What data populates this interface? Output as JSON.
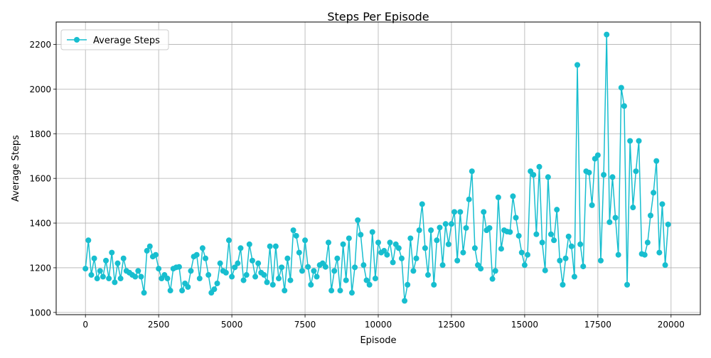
{
  "chart_data": {
    "type": "line",
    "title": "Steps Per Episode",
    "xlabel": "Episode",
    "ylabel": "Average Steps",
    "xlim": [
      -1000,
      21000
    ],
    "ylim": [
      990,
      2300
    ],
    "grid": true,
    "legend_position": "top-left",
    "x_ticks": [
      0,
      2500,
      5000,
      7500,
      10000,
      12500,
      15000,
      17500,
      20000
    ],
    "y_ticks": [
      1000,
      1200,
      1400,
      1600,
      1800,
      2000,
      2200
    ],
    "series": [
      {
        "name": "Average Steps",
        "color": "#17becf",
        "x": [
          0,
          100,
          200,
          300,
          400,
          500,
          600,
          700,
          800,
          900,
          1000,
          1100,
          1200,
          1300,
          1400,
          1500,
          1600,
          1700,
          1800,
          1900,
          2000,
          2100,
          2200,
          2300,
          2400,
          2500,
          2600,
          2700,
          2800,
          2900,
          3000,
          3100,
          3200,
          3300,
          3400,
          3500,
          3600,
          3700,
          3800,
          3900,
          4000,
          4100,
          4200,
          4300,
          4400,
          4500,
          4600,
          4700,
          4800,
          4900,
          5000,
          5100,
          5200,
          5300,
          5400,
          5500,
          5600,
          5700,
          5800,
          5900,
          6000,
          6100,
          6200,
          6300,
          6400,
          6500,
          6600,
          6700,
          6800,
          6900,
          7000,
          7100,
          7200,
          7300,
          7400,
          7500,
          7600,
          7700,
          7800,
          7900,
          8000,
          8100,
          8200,
          8300,
          8400,
          8500,
          8600,
          8700,
          8800,
          8900,
          9000,
          9100,
          9200,
          9300,
          9400,
          9500,
          9600,
          9700,
          9800,
          9900,
          10000,
          10100,
          10200,
          10300,
          10400,
          10500,
          10600,
          10700,
          10800,
          10900,
          11000,
          11100,
          11200,
          11300,
          11400,
          11500,
          11600,
          11700,
          11800,
          11900,
          12000,
          12100,
          12200,
          12300,
          12400,
          12500,
          12600,
          12700,
          12800,
          12900,
          13000,
          13100,
          13200,
          13300,
          13400,
          13500,
          13600,
          13700,
          13800,
          13900,
          14000,
          14100,
          14200,
          14300,
          14400,
          14500,
          14600,
          14700,
          14800,
          14900,
          15000,
          15100,
          15200,
          15300,
          15400,
          15500,
          15600,
          15700,
          15800,
          15900,
          16000,
          16100,
          16200,
          16300,
          16400,
          16500,
          16600,
          16700,
          16800,
          16900,
          17000,
          17100,
          17200,
          17300,
          17400,
          17500,
          17600,
          17700,
          17800,
          17900,
          18000,
          18100,
          18200,
          18300,
          18400,
          18500,
          18600,
          18700,
          18800,
          18900,
          19000,
          19100,
          19200,
          19300,
          19400,
          19500,
          19600,
          19700,
          19800,
          19900
        ],
        "values": [
          1196,
          1323,
          1168,
          1242,
          1152,
          1186,
          1160,
          1232,
          1152,
          1268,
          1135,
          1220,
          1152,
          1242,
          1186,
          1178,
          1168,
          1160,
          1186,
          1160,
          1088,
          1276,
          1296,
          1250,
          1258,
          1196,
          1152,
          1168,
          1152,
          1098,
          1196,
          1202,
          1204,
          1098,
          1130,
          1114,
          1186,
          1250,
          1258,
          1152,
          1288,
          1242,
          1168,
          1088,
          1104,
          1130,
          1220,
          1186,
          1178,
          1323,
          1160,
          1202,
          1220,
          1288,
          1144,
          1168,
          1305,
          1232,
          1160,
          1220,
          1178,
          1168,
          1135,
          1296,
          1124,
          1296,
          1152,
          1202,
          1098,
          1242,
          1144,
          1368,
          1343,
          1268,
          1186,
          1323,
          1204,
          1124,
          1186,
          1160,
          1212,
          1220,
          1204,
          1313,
          1098,
          1186,
          1242,
          1098,
          1305,
          1144,
          1332,
          1088,
          1202,
          1413,
          1348,
          1212,
          1144,
          1124,
          1360,
          1152,
          1313,
          1268,
          1276,
          1258,
          1313,
          1224,
          1305,
          1288,
          1242,
          1052,
          1124,
          1332,
          1186,
          1242,
          1368,
          1485,
          1288,
          1168,
          1368,
          1124,
          1323,
          1380,
          1212,
          1396,
          1305,
          1396,
          1450,
          1232,
          1450,
          1268,
          1378,
          1506,
          1632,
          1288,
          1212,
          1196,
          1450,
          1368,
          1378,
          1150,
          1186,
          1515,
          1285,
          1368,
          1362,
          1360,
          1520,
          1424,
          1343,
          1268,
          1212,
          1258,
          1632,
          1616,
          1350,
          1652,
          1313,
          1188,
          1606,
          1350,
          1323,
          1460,
          1232,
          1124,
          1242,
          1340,
          1296,
          1160,
          2108,
          1305,
          1206,
          1632,
          1626,
          1480,
          1688,
          1704,
          1232,
          1616,
          2244,
          1404,
          1606,
          1424,
          1258,
          2006,
          1924,
          1124,
          1768,
          1470,
          1632,
          1768,
          1262,
          1258,
          1313,
          1434,
          1536,
          1678,
          1268,
          1485,
          1212,
          1394
        ]
      }
    ]
  }
}
